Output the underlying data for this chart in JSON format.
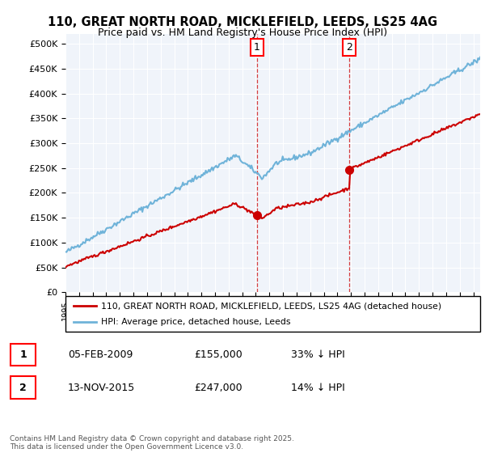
{
  "title_line1": "110, GREAT NORTH ROAD, MICKLEFIELD, LEEDS, LS25 4AG",
  "title_line2": "Price paid vs. HM Land Registry's House Price Index (HPI)",
  "hpi_color": "#6fb3d9",
  "sale_color": "#cc0000",
  "marker_color": "#cc0000",
  "bg_color": "#f0f4fa",
  "annotation1": {
    "label": "1",
    "date_str": "05-FEB-2009",
    "price": "£155,000",
    "hpi_diff": "33% ↓ HPI",
    "x_year": 2009.09
  },
  "annotation2": {
    "label": "2",
    "date_str": "13-NOV-2015",
    "price": "£247,000",
    "hpi_diff": "14% ↓ HPI",
    "x_year": 2015.87
  },
  "legend_sale": "110, GREAT NORTH ROAD, MICKLEFIELD, LEEDS, LS25 4AG (detached house)",
  "legend_hpi": "HPI: Average price, detached house, Leeds",
  "footer": "Contains HM Land Registry data © Crown copyright and database right 2025.\nThis data is licensed under the Open Government Licence v3.0.",
  "ylim": [
    0,
    520000
  ],
  "xlim_start": 1995,
  "xlim_end": 2025.5,
  "sale1_year": 2009.09,
  "sale2_year": 2015.87,
  "sale1_price": 155000,
  "sale2_price": 247000
}
